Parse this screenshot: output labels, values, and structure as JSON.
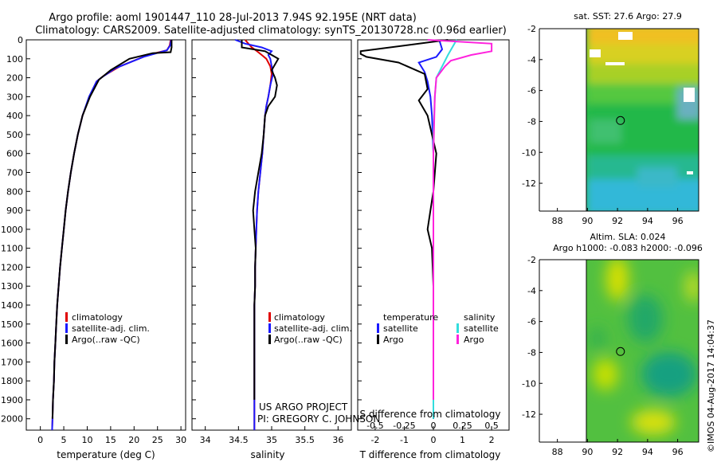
{
  "header": {
    "line1": "Argo profile: aoml 1901447_110 28-Jul-2013 7.94S 92.195E (NRT data)",
    "line2": "Climatology: CARS2009. Satellite-adjusted climatology: synTS_20130728.nc (0.96d earlier)"
  },
  "colors": {
    "climatology": "#e00000",
    "satellite": "#1a1aff",
    "argo": "#000000",
    "sat_sal": "#33dddd",
    "argo_sal": "#ff22dd"
  },
  "chart_data": [
    {
      "type": "line",
      "name": "temperature-profile",
      "xlabel": "temperature (deg C)",
      "xlim": [
        -3,
        31
      ],
      "ylim": [
        2060,
        0
      ],
      "xticks": [
        0,
        5,
        10,
        15,
        20,
        25,
        30
      ],
      "yticks": [
        0,
        100,
        200,
        300,
        400,
        500,
        600,
        700,
        800,
        900,
        1000,
        1100,
        1200,
        1300,
        1400,
        1500,
        1600,
        1700,
        1800,
        1900,
        2000
      ],
      "legend": [
        "climatology",
        "satellite-adj. clim.",
        "Argo(..raw -QC)"
      ],
      "series": [
        {
          "name": "climatology",
          "x": [
            27.8,
            27.6,
            27,
            23,
            17,
            13.5,
            12,
            10.5,
            9,
            8,
            7.2,
            6.5,
            5.9,
            5.4,
            5,
            4.6,
            4.2,
            3.9,
            3.6,
            3.4,
            3.2,
            3,
            2.9,
            2.7,
            2.6,
            2.5
          ],
          "y": [
            0,
            30,
            55,
            80,
            140,
            190,
            220,
            300,
            400,
            500,
            600,
            700,
            800,
            900,
            1000,
            1100,
            1200,
            1300,
            1400,
            1500,
            1600,
            1700,
            1800,
            1900,
            2000,
            2060
          ]
        },
        {
          "name": "satellite",
          "x": [
            27.9,
            27.7,
            27,
            22,
            16,
            13,
            12,
            10.4,
            9,
            8,
            7.2,
            6.5,
            5.9,
            5.4,
            5,
            4.6,
            4.2,
            3.9,
            3.6,
            3.4,
            3.2,
            3,
            2.9,
            2.7,
            2.6,
            2.5
          ],
          "y": [
            0,
            30,
            55,
            90,
            150,
            200,
            220,
            300,
            400,
            500,
            600,
            700,
            800,
            900,
            1000,
            1100,
            1200,
            1300,
            1400,
            1500,
            1600,
            1700,
            1800,
            1900,
            2000,
            2060
          ]
        },
        {
          "name": "argo",
          "x": [
            28,
            28,
            27.8,
            24,
            19,
            15,
            12.5,
            10.6,
            9,
            8,
            7.2,
            6.5,
            5.9,
            5.4,
            5,
            4.6,
            4.2,
            3.9,
            3.6,
            3.4,
            3.2,
            3,
            2.9,
            2.7,
            2.6
          ],
          "y": [
            0,
            40,
            65,
            70,
            100,
            160,
            210,
            300,
            400,
            500,
            600,
            700,
            800,
            900,
            1000,
            1100,
            1200,
            1300,
            1400,
            1500,
            1600,
            1700,
            1800,
            1900,
            2000
          ]
        }
      ]
    },
    {
      "type": "line",
      "name": "salinity-profile",
      "xlabel": "salinity",
      "xlim": [
        33.8,
        36.2
      ],
      "ylim": [
        2060,
        0
      ],
      "xticks": [
        34,
        34.5,
        35,
        35.5,
        36
      ],
      "legend": [
        "climatology",
        "satellite-adj. clim.",
        "Argo(..raw -QC)"
      ],
      "series": [
        {
          "name": "climatology",
          "x": [
            34.6,
            34.65,
            34.7,
            34.78,
            34.85,
            34.92,
            34.98,
            35,
            34.98,
            34.95,
            34.92,
            34.9,
            34.88,
            34.86,
            34.83,
            34.8,
            34.78,
            34.77,
            34.76,
            34.75,
            34.75,
            34.74,
            34.74,
            34.74,
            34.74,
            34.74,
            34.74,
            34.74
          ],
          "y": [
            0,
            20,
            40,
            60,
            80,
            100,
            140,
            180,
            240,
            300,
            350,
            400,
            500,
            600,
            700,
            800,
            900,
            1000,
            1100,
            1200,
            1300,
            1400,
            1500,
            1600,
            1700,
            1800,
            1900,
            2060
          ]
        },
        {
          "name": "satellite",
          "x": [
            34.45,
            34.6,
            34.85,
            35,
            34.95,
            34.98,
            35,
            35.02,
            34.98,
            34.95,
            34.92,
            34.9,
            34.88,
            34.86,
            34.83,
            34.8,
            34.78,
            34.77,
            34.76,
            34.75,
            34.75,
            34.74,
            34.74,
            34.74,
            34.74,
            34.74,
            34.74,
            34.74
          ],
          "y": [
            0,
            20,
            40,
            60,
            80,
            100,
            140,
            180,
            240,
            300,
            350,
            400,
            500,
            600,
            700,
            800,
            900,
            1000,
            1100,
            1200,
            1300,
            1400,
            1500,
            1600,
            1700,
            1800,
            1900,
            2060
          ]
        },
        {
          "name": "argo",
          "x": [
            34.55,
            34.55,
            34.9,
            35,
            35.1,
            35.05,
            35,
            35.05,
            35.08,
            35.05,
            34.95,
            34.9,
            34.88,
            34.85,
            34.8,
            34.75,
            34.72,
            34.74,
            34.76,
            34.75,
            34.75,
            34.74,
            34.74,
            34.74,
            34.74,
            34.74,
            34.74
          ],
          "y": [
            0,
            40,
            60,
            80,
            100,
            130,
            160,
            200,
            240,
            300,
            350,
            400,
            500,
            600,
            700,
            800,
            900,
            1000,
            1100,
            1200,
            1300,
            1400,
            1500,
            1600,
            1700,
            1800,
            1900
          ]
        }
      ],
      "annotations": [
        "US ARGO PROJECT",
        "PI: GREGORY C. JOHNSON"
      ]
    },
    {
      "type": "line",
      "name": "difference-profile",
      "xlabel_bottom": "T difference from climatology",
      "xlabel_top": "S difference from climatology",
      "xlim": [
        -2.6,
        2.6
      ],
      "ylim": [
        2060,
        0
      ],
      "xticks": [
        -2,
        -1,
        0,
        1,
        2
      ],
      "s_xticks": [
        "-0.5",
        "-0.25",
        "0",
        "0.25",
        "0.5"
      ],
      "s_tick_pos": [
        -2,
        -1,
        0,
        1,
        2
      ],
      "legend": {
        "temperature_header": "temperature",
        "salinity_header": "salinity",
        "items": [
          "satellite",
          "Argo",
          "satellite",
          "Argo"
        ]
      },
      "series": [
        {
          "name": "T satellite",
          "x": [
            0.2,
            0.3,
            0.1,
            -0.5,
            -0.3,
            -0.2,
            -0.1,
            -0.05,
            0,
            0,
            0,
            0,
            0
          ],
          "y": [
            0,
            50,
            90,
            120,
            170,
            220,
            300,
            400,
            600,
            800,
            1200,
            1600,
            2000
          ]
        },
        {
          "name": "T argo",
          "x": [
            0.5,
            -2.5,
            -2.5,
            -2.3,
            -1.2,
            -0.3,
            -0.2,
            -0.5,
            -0.2,
            0.1,
            0,
            -0.1,
            -0.2,
            -0.05,
            0,
            0,
            0,
            0
          ],
          "y": [
            0,
            60,
            75,
            90,
            120,
            180,
            260,
            320,
            400,
            600,
            800,
            900,
            1000,
            1100,
            1300,
            1500,
            1700,
            2000
          ]
        },
        {
          "name": "S satellite",
          "x": [
            0.8,
            0.5,
            0.3,
            0.1,
            0.05,
            0,
            0,
            0,
            0
          ],
          "y": [
            0,
            80,
            140,
            200,
            300,
            500,
            1000,
            1500,
            2000
          ]
        },
        {
          "name": "S argo",
          "x": [
            -0.2,
            2,
            2,
            1.3,
            0.6,
            0.4,
            0.1,
            0.05,
            0,
            0,
            0
          ],
          "y": [
            0,
            20,
            60,
            80,
            110,
            140,
            200,
            300,
            600,
            1300,
            1900
          ]
        }
      ]
    },
    {
      "type": "heatmap",
      "name": "sst-map",
      "title": "sat. SST: 27.6  Argo: 27.9",
      "xticks": [
        88,
        90,
        92,
        94,
        96
      ],
      "yticks": [
        -2,
        -4,
        -6,
        -8,
        -10,
        -12
      ],
      "xlim": [
        86.8,
        97.4
      ],
      "ylim": [
        -13.8,
        -2
      ],
      "float_position": [
        92.195,
        -7.94
      ]
    },
    {
      "type": "heatmap",
      "name": "sla-map",
      "title": "Altim. SLA: 0.024",
      "subtitle": "Argo h1000: -0.083 h2000: -0.096",
      "xticks": [
        88,
        90,
        92,
        94,
        96
      ],
      "yticks": [
        -2,
        -4,
        -6,
        -8,
        -10,
        -12
      ],
      "xlim": [
        86.8,
        97.4
      ],
      "ylim": [
        -13.8,
        -2
      ],
      "float_position": [
        92.195,
        -7.94
      ]
    }
  ],
  "footer": {
    "credit": "©IMOS 04-Aug-2017 14:04:37"
  }
}
